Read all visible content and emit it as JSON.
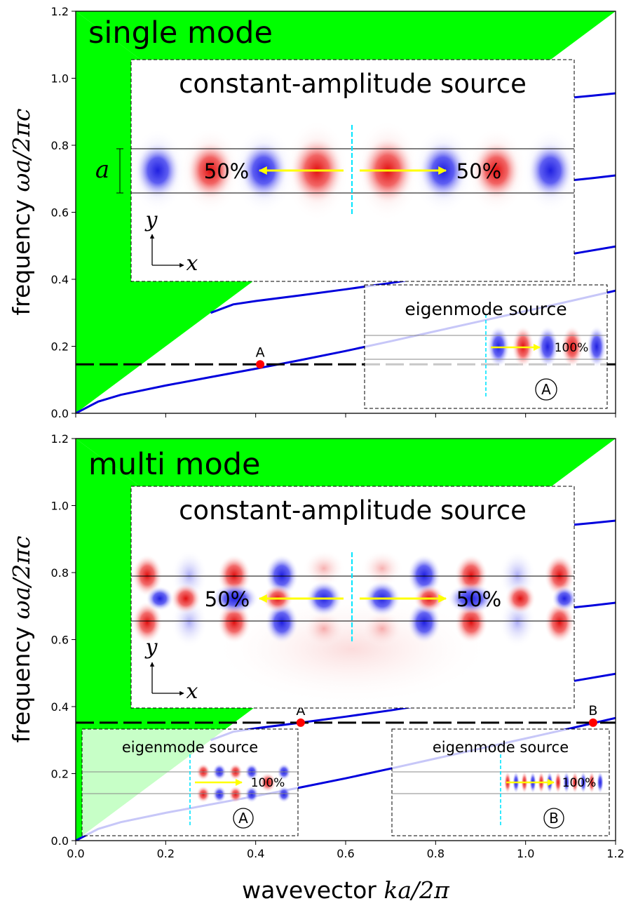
{
  "chart_data": [
    {
      "type": "line",
      "panel_title": "single mode",
      "ylabel_text": "frequency ",
      "ylabel_math": "ωa/2πc",
      "xlim": [
        0.0,
        1.2
      ],
      "ylim": [
        0.0,
        1.2
      ],
      "xticks": [
        "0.0",
        "0.2",
        "0.4",
        "0.6",
        "0.8",
        "1.0",
        "1.2"
      ],
      "yticks": [
        "0.0",
        "0.2",
        "0.4",
        "0.6",
        "0.8",
        "1.0",
        "1.2"
      ],
      "light_cone_color": "#00ff00",
      "band_color": "#0000dd",
      "bands": [
        {
          "x": [
            0.0,
            0.05,
            0.1,
            0.2,
            0.3,
            0.4,
            0.5,
            0.6,
            0.7,
            0.8,
            0.9,
            1.0,
            1.1,
            1.2
          ],
          "y": [
            0.0,
            0.035,
            0.055,
            0.083,
            0.108,
            0.133,
            0.159,
            0.186,
            0.215,
            0.245,
            0.275,
            0.305,
            0.335,
            0.366
          ]
        },
        {
          "x": [
            0.3,
            0.35,
            0.4,
            0.5,
            0.6,
            0.7,
            0.8,
            0.9,
            1.0,
            1.1,
            1.2
          ],
          "y": [
            0.3,
            0.325,
            0.335,
            0.352,
            0.37,
            0.389,
            0.41,
            0.43,
            0.452,
            0.475,
            0.498
          ]
        },
        {
          "x": [
            1.1,
            1.15,
            1.2
          ],
          "y": [
            0.695,
            0.702,
            0.71
          ]
        },
        {
          "x": [
            1.1,
            1.15,
            1.2
          ],
          "y": [
            0.942,
            0.948,
            0.955
          ]
        }
      ],
      "frequency_line": 0.146,
      "points": [
        {
          "label": "A",
          "x": 0.41,
          "y": 0.146
        }
      ],
      "insets": {
        "main": {
          "title": "constant-amplitude source",
          "left_pct": "50%",
          "right_pct": "50%",
          "width_label": "a",
          "axis_y": "y",
          "axis_x": "x"
        },
        "eigen": [
          {
            "title": "eigenmode source",
            "pct": "100%",
            "marker": "A"
          }
        ]
      }
    },
    {
      "type": "line",
      "panel_title": "multi mode",
      "ylabel_text": "frequency ",
      "ylabel_math": "ωa/2πc",
      "xlabel_text": "wavevector ",
      "xlabel_math": "ka/2π",
      "xlim": [
        0.0,
        1.2
      ],
      "ylim": [
        0.0,
        1.2
      ],
      "xticks": [
        "0.0",
        "0.2",
        "0.4",
        "0.6",
        "0.8",
        "1.0",
        "1.2"
      ],
      "yticks": [
        "0.0",
        "0.2",
        "0.4",
        "0.6",
        "0.8",
        "1.0",
        "1.2"
      ],
      "light_cone_color": "#00ff00",
      "band_color": "#0000dd",
      "bands": [
        {
          "x": [
            0.0,
            0.05,
            0.1,
            0.2,
            0.3,
            0.4,
            0.5,
            0.6,
            0.7,
            0.8,
            0.9,
            1.0,
            1.1,
            1.2
          ],
          "y": [
            0.0,
            0.035,
            0.055,
            0.083,
            0.108,
            0.133,
            0.159,
            0.186,
            0.215,
            0.245,
            0.275,
            0.305,
            0.335,
            0.366
          ]
        },
        {
          "x": [
            0.3,
            0.35,
            0.4,
            0.5,
            0.6,
            0.7,
            0.8,
            0.9,
            1.0,
            1.1,
            1.2
          ],
          "y": [
            0.3,
            0.325,
            0.335,
            0.352,
            0.37,
            0.389,
            0.41,
            0.43,
            0.452,
            0.475,
            0.498
          ]
        },
        {
          "x": [
            1.1,
            1.15,
            1.2
          ],
          "y": [
            0.695,
            0.702,
            0.71
          ]
        },
        {
          "x": [
            1.1,
            1.15,
            1.2
          ],
          "y": [
            0.942,
            0.948,
            0.955
          ]
        }
      ],
      "frequency_line": 0.352,
      "points": [
        {
          "label": "A",
          "x": 0.5,
          "y": 0.352
        },
        {
          "label": "B",
          "x": 1.15,
          "y": 0.352
        }
      ],
      "insets": {
        "main": {
          "title": "constant-amplitude source",
          "left_pct": "50%",
          "right_pct": "50%",
          "axis_y": "y",
          "axis_x": "x"
        },
        "eigen": [
          {
            "title": "eigenmode source",
            "pct": "100%",
            "marker": "A"
          },
          {
            "title": "eigenmode source",
            "pct": "100%",
            "marker": "B"
          }
        ]
      }
    }
  ]
}
